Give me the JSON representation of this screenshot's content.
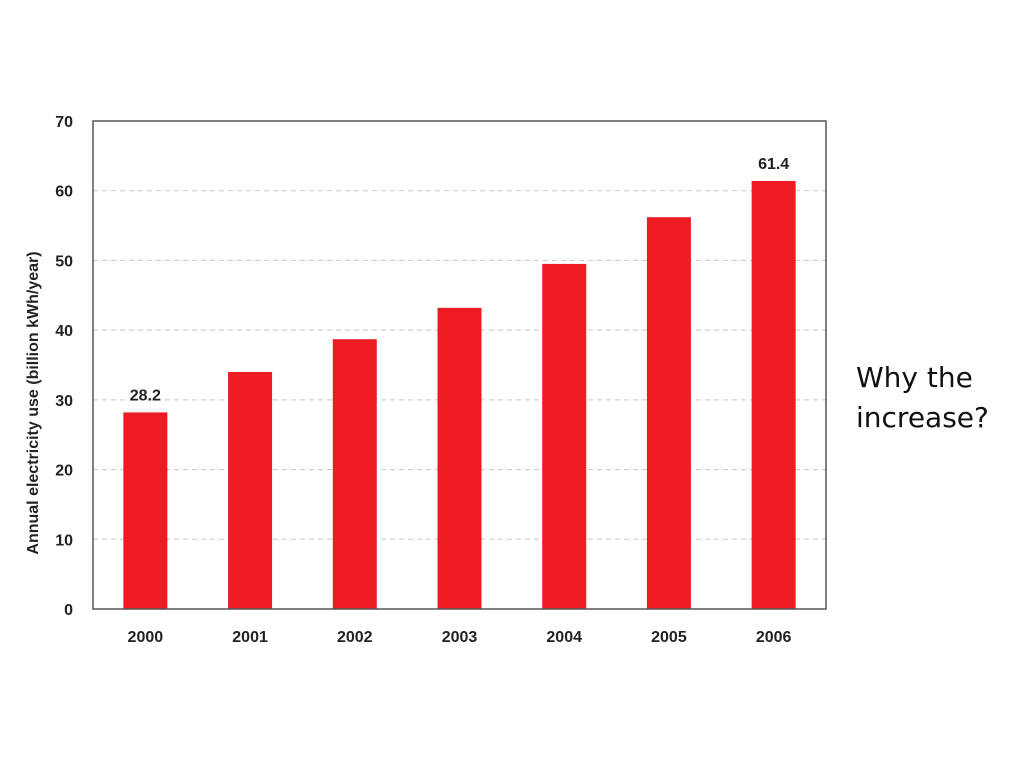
{
  "slide": {
    "side_note_line1": "Why the",
    "side_note_line2": "increase?"
  },
  "chart_data": {
    "type": "bar",
    "categories": [
      "2000",
      "2001",
      "2002",
      "2003",
      "2004",
      "2005",
      "2006"
    ],
    "values": [
      28.2,
      34.0,
      38.7,
      43.2,
      49.5,
      56.2,
      61.4
    ],
    "data_labels": [
      {
        "category": "2000",
        "text": "28.2"
      },
      {
        "category": "2006",
        "text": "61.4"
      }
    ],
    "title": "",
    "xlabel": "",
    "ylabel": "Annual electricity use (billion kWh/year)",
    "ylim": [
      0,
      70
    ],
    "yticks": [
      0,
      10,
      20,
      30,
      40,
      50,
      60,
      70
    ],
    "grid": true,
    "bar_color": "#ed1c24"
  }
}
